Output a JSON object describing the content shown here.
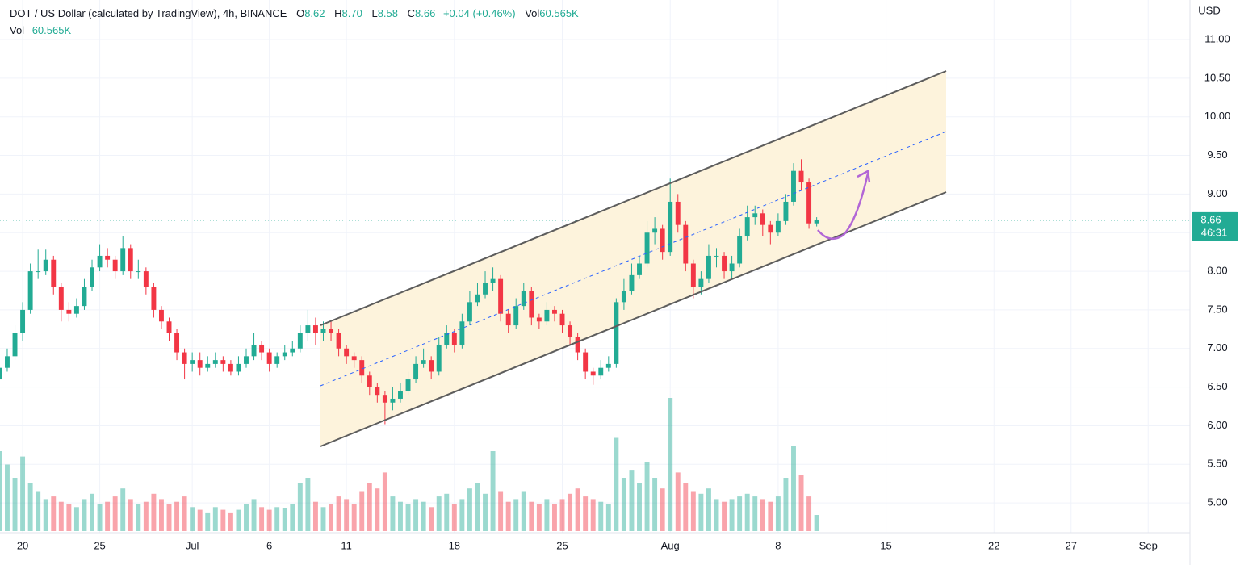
{
  "chart_data": {
    "type": "candlestick",
    "title": "DOT / US Dollar (calculated by TradingView), 4h, BINANCE",
    "legend": {
      "open_label": "O",
      "open": "8.62",
      "high_label": "H",
      "high": "8.70",
      "low_label": "L",
      "low": "8.58",
      "close_label": "C",
      "close": "8.66",
      "change": "+0.04 (+0.46%)",
      "volume_label": "Vol",
      "volume": "60.565K"
    },
    "y_axis_label": "USD",
    "countdown": "46:31",
    "up_color": "#22ab94",
    "down_color": "#f23645",
    "grid": true,
    "x": [
      18.5,
      19,
      19.5,
      20,
      20.5,
      21,
      21.5,
      22,
      22.5,
      23,
      23.5,
      24,
      24.5,
      25,
      25.5,
      26,
      26.5,
      27,
      27.5,
      28,
      28.5,
      29,
      29.5,
      30,
      30.5,
      31,
      31.5,
      32,
      32.5,
      33,
      33.5,
      34,
      34.5,
      35,
      35.5,
      36,
      36.5,
      37,
      37.5,
      38,
      38.5,
      39,
      39.5,
      40,
      40.5,
      41,
      41.5,
      42,
      42.5,
      43,
      43.5,
      44,
      44.5,
      45,
      45.5,
      46,
      46.5,
      47,
      47.5,
      48,
      48.5,
      49,
      49.5,
      50,
      50.5,
      51,
      51.5,
      52,
      52.5,
      53,
      53.5,
      54,
      54.5,
      55,
      55.5,
      56,
      56.5,
      57,
      57.5,
      58,
      58.5,
      59,
      59.5,
      60,
      60.5,
      61,
      61.5,
      62,
      62.5,
      63,
      63.5,
      64,
      64.5,
      65,
      65.5,
      66,
      66.5,
      67,
      67.5,
      68,
      68.5,
      69,
      69.5,
      70,
      70.5,
      71,
      71.5
    ],
    "open": [
      6.6,
      6.75,
      6.9,
      7.2,
      7.5,
      8.0,
      8.0,
      8.15,
      7.8,
      7.5,
      7.45,
      7.55,
      7.8,
      8.05,
      8.2,
      8.15,
      8.0,
      8.3,
      8.0,
      8.0,
      7.8,
      7.5,
      7.35,
      7.2,
      6.95,
      6.8,
      6.85,
      6.75,
      6.8,
      6.85,
      6.8,
      6.7,
      6.8,
      6.9,
      7.05,
      6.95,
      6.8,
      6.9,
      6.95,
      7.0,
      7.2,
      7.3,
      7.2,
      7.25,
      7.2,
      7.0,
      6.9,
      6.85,
      6.65,
      6.5,
      6.4,
      6.3,
      6.35,
      6.45,
      6.6,
      6.8,
      6.85,
      6.7,
      7.05,
      7.2,
      7.05,
      7.35,
      7.6,
      7.7,
      7.85,
      7.9,
      7.45,
      7.3,
      7.55,
      7.75,
      7.4,
      7.35,
      7.5,
      7.45,
      7.3,
      7.15,
      6.95,
      6.7,
      6.65,
      6.75,
      6.8,
      7.6,
      7.75,
      7.95,
      8.1,
      8.5,
      8.55,
      8.25,
      8.9,
      8.6,
      8.1,
      7.8,
      7.9,
      8.2,
      8.2,
      8.0,
      8.1,
      8.45,
      8.7,
      8.75,
      8.6,
      8.5,
      8.65,
      8.9,
      9.3,
      9.15,
      8.62
    ],
    "high": [
      6.85,
      7.0,
      7.3,
      7.6,
      8.1,
      8.28,
      8.28,
      8.2,
      7.85,
      7.6,
      7.65,
      7.9,
      8.15,
      8.35,
      8.3,
      8.2,
      8.45,
      8.35,
      8.15,
      8.05,
      7.85,
      7.55,
      7.4,
      7.25,
      7.0,
      6.95,
      6.95,
      6.9,
      6.95,
      6.9,
      6.85,
      6.9,
      7.0,
      7.2,
      7.1,
      7.0,
      6.95,
      7.05,
      7.1,
      7.3,
      7.5,
      7.4,
      7.35,
      7.35,
      7.25,
      7.05,
      6.95,
      6.9,
      6.7,
      6.55,
      6.45,
      6.5,
      6.55,
      6.7,
      6.9,
      7.0,
      6.9,
      7.15,
      7.3,
      7.25,
      7.45,
      7.75,
      7.85,
      8.0,
      8.05,
      7.95,
      7.5,
      7.65,
      7.85,
      7.8,
      7.45,
      7.6,
      7.55,
      7.5,
      7.35,
      7.2,
      7.0,
      6.75,
      6.85,
      6.9,
      7.65,
      7.9,
      8.1,
      8.2,
      8.65,
      8.7,
      8.6,
      9.2,
      9.0,
      8.65,
      8.15,
      8.0,
      8.35,
      8.3,
      8.25,
      8.2,
      8.55,
      8.85,
      8.85,
      8.8,
      8.65,
      8.75,
      9.0,
      9.4,
      9.45,
      9.2,
      8.7
    ],
    "low": [
      6.45,
      6.7,
      6.85,
      7.1,
      7.45,
      7.9,
      7.95,
      7.7,
      7.35,
      7.35,
      7.4,
      7.5,
      7.75,
      8.0,
      8.05,
      7.9,
      7.95,
      7.9,
      7.9,
      7.7,
      7.4,
      7.25,
      7.1,
      6.85,
      6.6,
      6.7,
      6.65,
      6.7,
      6.75,
      6.7,
      6.65,
      6.65,
      6.75,
      6.85,
      6.85,
      6.7,
      6.75,
      6.85,
      6.9,
      6.95,
      7.1,
      7.05,
      7.1,
      7.1,
      6.9,
      6.8,
      6.75,
      6.55,
      6.4,
      6.3,
      6.02,
      6.2,
      6.3,
      6.4,
      6.55,
      6.75,
      6.6,
      6.65,
      7.0,
      6.95,
      7.0,
      7.3,
      7.55,
      7.65,
      7.75,
      7.35,
      7.2,
      7.25,
      7.5,
      7.3,
      7.25,
      7.3,
      7.35,
      7.2,
      7.05,
      6.85,
      6.6,
      6.53,
      6.6,
      6.7,
      6.75,
      7.5,
      7.7,
      7.9,
      8.05,
      8.35,
      8.15,
      8.2,
      8.5,
      8.0,
      7.65,
      7.7,
      7.85,
      8.05,
      7.9,
      7.9,
      8.05,
      8.4,
      8.6,
      8.45,
      8.35,
      8.45,
      8.6,
      8.85,
      9.05,
      8.55,
      8.58
    ],
    "close": [
      6.75,
      6.9,
      7.2,
      7.5,
      8.0,
      8.0,
      8.15,
      7.8,
      7.5,
      7.45,
      7.55,
      7.8,
      8.05,
      8.2,
      8.15,
      8.0,
      8.3,
      8.0,
      8.0,
      7.8,
      7.5,
      7.35,
      7.2,
      6.95,
      6.8,
      6.85,
      6.75,
      6.8,
      6.85,
      6.8,
      6.7,
      6.8,
      6.9,
      7.05,
      6.95,
      6.8,
      6.9,
      6.95,
      7.0,
      7.2,
      7.3,
      7.2,
      7.25,
      7.2,
      7.0,
      6.9,
      6.85,
      6.65,
      6.5,
      6.4,
      6.3,
      6.35,
      6.45,
      6.6,
      6.8,
      6.85,
      6.7,
      7.05,
      7.2,
      7.05,
      7.35,
      7.6,
      7.7,
      7.85,
      7.9,
      7.45,
      7.3,
      7.55,
      7.75,
      7.4,
      7.35,
      7.5,
      7.45,
      7.3,
      7.15,
      6.95,
      6.7,
      6.65,
      6.75,
      6.8,
      7.6,
      7.75,
      7.95,
      8.1,
      8.5,
      8.55,
      8.25,
      8.9,
      8.6,
      8.1,
      7.8,
      7.9,
      8.2,
      8.2,
      8.0,
      8.1,
      8.45,
      8.7,
      8.75,
      8.6,
      8.5,
      8.65,
      8.9,
      9.3,
      9.15,
      8.62,
      8.66
    ],
    "volume": [
      300,
      250,
      200,
      280,
      180,
      150,
      120,
      130,
      110,
      100,
      90,
      120,
      140,
      100,
      110,
      130,
      160,
      120,
      100,
      110,
      140,
      120,
      100,
      110,
      130,
      90,
      80,
      70,
      90,
      80,
      70,
      80,
      100,
      120,
      90,
      80,
      90,
      85,
      100,
      180,
      200,
      110,
      90,
      100,
      130,
      120,
      100,
      150,
      180,
      160,
      220,
      130,
      110,
      100,
      120,
      110,
      90,
      130,
      140,
      100,
      120,
      160,
      180,
      140,
      300,
      150,
      110,
      120,
      150,
      110,
      100,
      120,
      100,
      120,
      140,
      160,
      130,
      120,
      110,
      100,
      350,
      200,
      230,
      180,
      260,
      200,
      160,
      500,
      220,
      180,
      150,
      140,
      160,
      120,
      110,
      120,
      130,
      140,
      130,
      120,
      110,
      130,
      200,
      320,
      210,
      130,
      60.565
    ],
    "xlim": [
      18.53,
      95.71
    ],
    "xticks": [
      20,
      25,
      {
        "value": 31,
        "label": "Jul"
      },
      {
        "value": 36,
        "label": "6"
      },
      {
        "value": 41,
        "label": "11"
      },
      {
        "value": 48,
        "label": "18"
      },
      {
        "value": 55,
        "label": "25"
      },
      {
        "value": 62,
        "label": "Aug"
      },
      {
        "value": 69,
        "label": "8"
      },
      {
        "value": 76,
        "label": "15"
      },
      {
        "value": 83,
        "label": "22"
      },
      {
        "value": 88,
        "label": "27"
      },
      {
        "value": 93,
        "label": "Sep"
      }
    ],
    "ylim": [
      4.615,
      11.512
    ],
    "yticks": [
      {
        "value": 5,
        "label": "5.00"
      },
      {
        "value": 5.5,
        "label": "5.50"
      },
      {
        "value": 6,
        "label": "6.00"
      },
      {
        "value": 6.5,
        "label": "6.50"
      },
      {
        "value": 7,
        "label": "7.00"
      },
      {
        "value": 7.5,
        "label": "7.50"
      },
      {
        "value": 8,
        "label": "8.00"
      },
      {
        "value": 8.5,
        "label": "8.50"
      },
      {
        "value": 9,
        "label": "9.00"
      },
      {
        "value": 9.5,
        "label": "9.50"
      },
      {
        "value": 10,
        "label": "10.00"
      },
      {
        "value": 10.5,
        "label": "10.50"
      },
      {
        "value": 11,
        "label": "11.00"
      }
    ]
  }
}
